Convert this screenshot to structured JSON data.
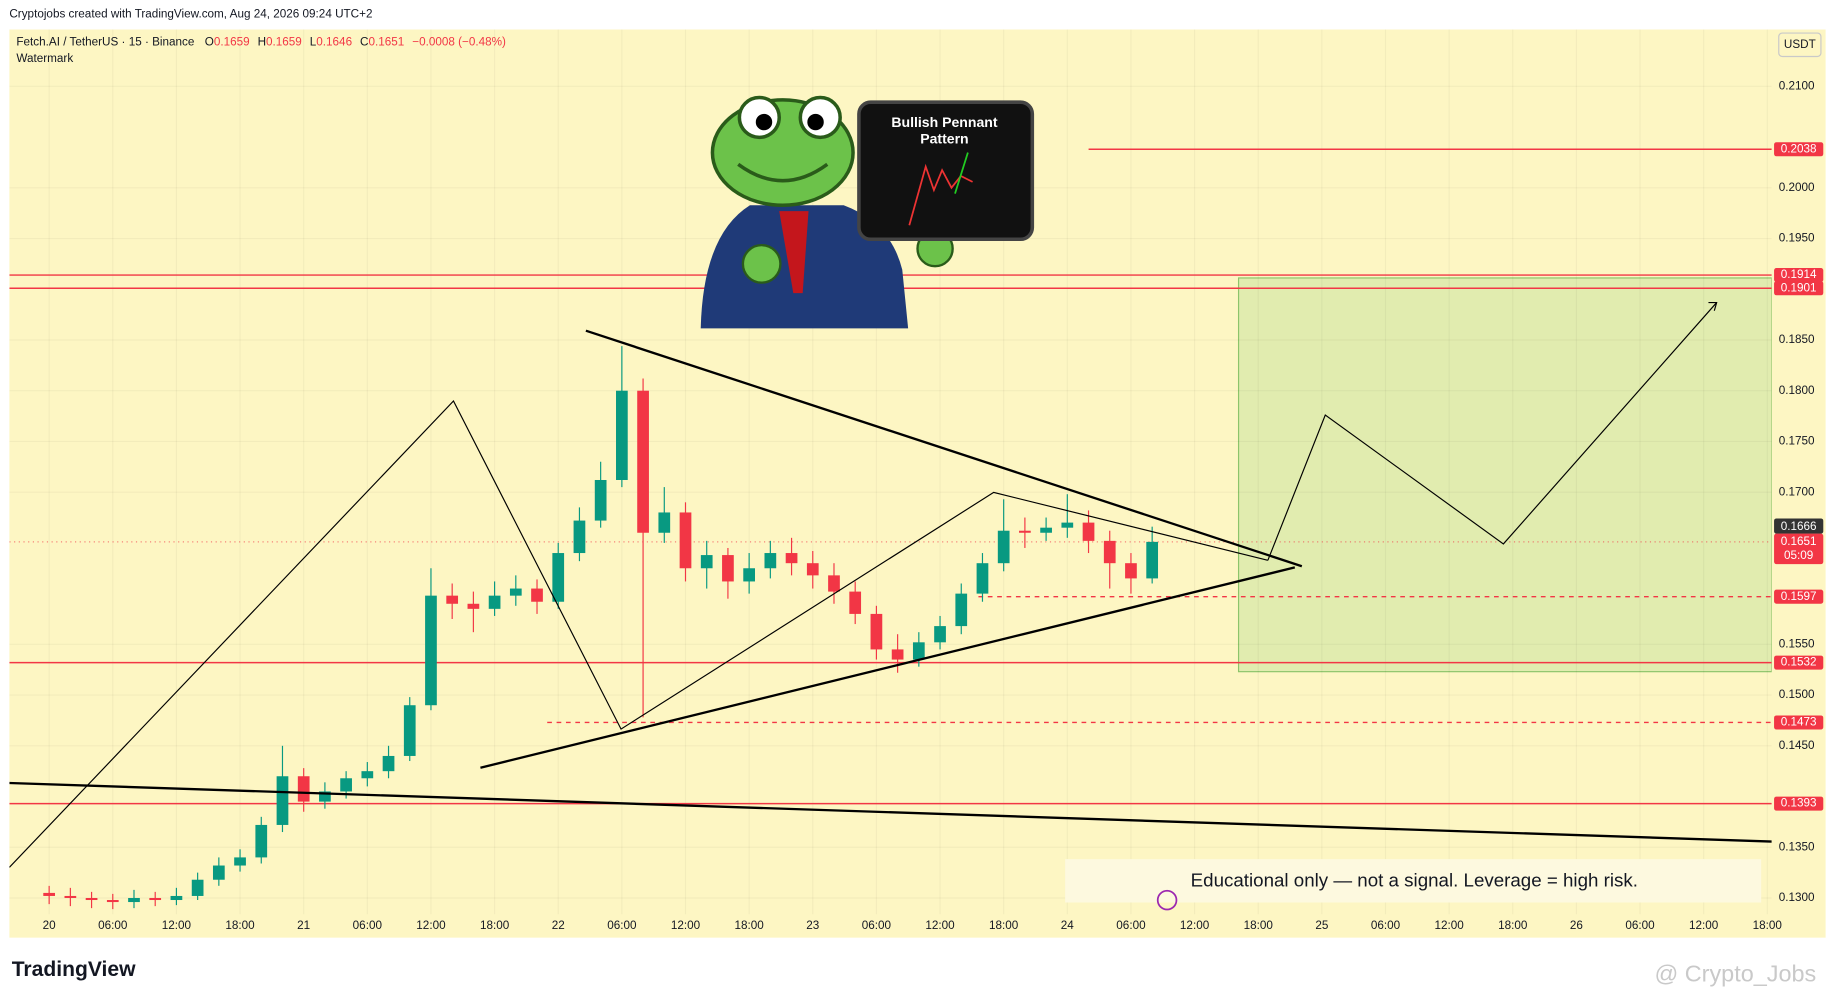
{
  "header": {
    "credit": "Cryptojobs created with TradingView.com, Aug 24, 2026 09:24 UTC+2",
    "symbol": "Fetch.AI / TetherUS · 15 · Binance",
    "open_label": "O",
    "open": "0.1659",
    "high_label": "H",
    "high": "0.1659",
    "low_label": "L",
    "low": "0.1646",
    "close_label": "C",
    "close": "0.1651",
    "change": "−0.0008 (−0.48%)",
    "watermark": "Watermark",
    "currency": "USDT"
  },
  "board": {
    "title": "Bullish Pennant",
    "subtitle": "Pattern"
  },
  "disclaimer": "Educational only — not a signal. Leverage  = high risk.",
  "footer": {
    "logo": "TradingView",
    "handle": "@ Crypto_Jobs"
  },
  "chart_data": {
    "type": "candlestick",
    "up_color": "#089981",
    "down_color": "#f23645",
    "x": [
      "20 00:00",
      "20 02:00",
      "20 04:00",
      "20 06:00",
      "20 08:00",
      "20 10:00",
      "20 12:00",
      "20 14:00",
      "20 16:00",
      "20 18:00",
      "20 20:00",
      "20 22:00",
      "21 00:00",
      "21 02:00",
      "21 04:00",
      "21 06:00",
      "21 08:00",
      "21 10:00",
      "21 12:00",
      "21 14:00",
      "21 16:00",
      "21 18:00",
      "21 20:00",
      "21 22:00",
      "22 00:00",
      "22 02:00",
      "22 04:00",
      "22 06:00",
      "22 08:00",
      "22 10:00",
      "22 12:00",
      "22 14:00",
      "22 16:00",
      "22 18:00",
      "22 20:00",
      "22 22:00",
      "23 00:00",
      "23 02:00",
      "23 04:00",
      "23 06:00",
      "23 08:00",
      "23 10:00",
      "23 12:00",
      "23 14:00",
      "23 16:00",
      "23 18:00",
      "23 20:00",
      "23 22:00",
      "24 00:00",
      "24 02:00",
      "24 04:00",
      "24 06:00",
      "24 08:00"
    ],
    "open": [
      0.1305,
      0.1302,
      0.13,
      0.1298,
      0.1296,
      0.13,
      0.1298,
      0.1302,
      0.1318,
      0.1332,
      0.134,
      0.1372,
      0.142,
      0.1395,
      0.1405,
      0.1418,
      0.1425,
      0.144,
      0.149,
      0.1598,
      0.159,
      0.1585,
      0.1598,
      0.1605,
      0.1592,
      0.164,
      0.1672,
      0.1712,
      0.18,
      0.166,
      0.168,
      0.1625,
      0.1638,
      0.1612,
      0.1625,
      0.164,
      0.163,
      0.1618,
      0.1602,
      0.158,
      0.1545,
      0.1535,
      0.1552,
      0.1568,
      0.16,
      0.163,
      0.1662,
      0.166,
      0.1665,
      0.167,
      0.1652,
      0.163,
      0.1615
    ],
    "high": [
      0.1312,
      0.131,
      0.1306,
      0.1304,
      0.1308,
      0.1306,
      0.131,
      0.1325,
      0.134,
      0.1348,
      0.138,
      0.145,
      0.1428,
      0.1414,
      0.1425,
      0.1434,
      0.145,
      0.1498,
      0.1625,
      0.161,
      0.1602,
      0.1612,
      0.1618,
      0.1614,
      0.165,
      0.1685,
      0.173,
      0.1844,
      0.1812,
      0.1705,
      0.169,
      0.1652,
      0.1645,
      0.164,
      0.1652,
      0.1655,
      0.1642,
      0.163,
      0.1612,
      0.1588,
      0.156,
      0.1562,
      0.1578,
      0.161,
      0.164,
      0.1693,
      0.1675,
      0.1675,
      0.1698,
      0.1682,
      0.1662,
      0.164,
      0.1666
    ],
    "low": [
      0.1294,
      0.1292,
      0.129,
      0.1289,
      0.129,
      0.1292,
      0.1293,
      0.1298,
      0.1312,
      0.1326,
      0.1334,
      0.1365,
      0.1385,
      0.1388,
      0.1398,
      0.141,
      0.1418,
      0.1435,
      0.1485,
      0.1575,
      0.1562,
      0.1578,
      0.1588,
      0.158,
      0.1585,
      0.1632,
      0.1665,
      0.1705,
      0.1478,
      0.165,
      0.1612,
      0.1605,
      0.1595,
      0.16,
      0.1615,
      0.1618,
      0.1605,
      0.159,
      0.157,
      0.1535,
      0.1522,
      0.1528,
      0.1545,
      0.156,
      0.1592,
      0.1622,
      0.1645,
      0.1652,
      0.1655,
      0.164,
      0.1605,
      0.16,
      0.161
    ],
    "close": [
      0.1302,
      0.13,
      0.1298,
      0.1296,
      0.13,
      0.1298,
      0.1302,
      0.1318,
      0.1332,
      0.134,
      0.1372,
      0.142,
      0.1395,
      0.1405,
      0.1418,
      0.1425,
      0.144,
      0.149,
      0.1598,
      0.159,
      0.1585,
      0.1598,
      0.1605,
      0.1592,
      0.164,
      0.1672,
      0.1712,
      0.18,
      0.166,
      0.168,
      0.1625,
      0.1638,
      0.1612,
      0.1625,
      0.164,
      0.163,
      0.1618,
      0.1602,
      0.158,
      0.1545,
      0.1535,
      0.1552,
      0.1568,
      0.16,
      0.163,
      0.1662,
      0.166,
      0.1665,
      0.167,
      0.1652,
      0.163,
      0.1615,
      0.1651
    ],
    "xlim": [
      "19 20:15",
      "26 18:25"
    ],
    "xticks": [
      {
        "value": "20 00:00",
        "label": "20"
      },
      {
        "value": "20 06:00",
        "label": "06:00"
      },
      {
        "value": "20 12:00",
        "label": "12:00"
      },
      {
        "value": "20 18:00",
        "label": "18:00"
      },
      {
        "value": "21 00:00",
        "label": "21"
      },
      {
        "value": "21 06:00",
        "label": "06:00"
      },
      {
        "value": "21 12:00",
        "label": "12:00"
      },
      {
        "value": "21 18:00",
        "label": "18:00"
      },
      {
        "value": "22 00:00",
        "label": "22"
      },
      {
        "value": "22 06:00",
        "label": "06:00"
      },
      {
        "value": "22 12:00",
        "label": "12:00"
      },
      {
        "value": "22 18:00",
        "label": "18:00"
      },
      {
        "value": "23 00:00",
        "label": "23"
      },
      {
        "value": "23 06:00",
        "label": "06:00"
      },
      {
        "value": "23 12:00",
        "label": "12:00"
      },
      {
        "value": "23 18:00",
        "label": "18:00"
      },
      {
        "value": "24 00:00",
        "label": "24"
      },
      {
        "value": "24 06:00",
        "label": "06:00"
      },
      {
        "value": "24 12:00",
        "label": "12:00"
      },
      {
        "value": "24 18:00",
        "label": "18:00"
      },
      {
        "value": "25 00:00",
        "label": "25"
      },
      {
        "value": "25 06:00",
        "label": "06:00"
      },
      {
        "value": "25 12:00",
        "label": "12:00"
      },
      {
        "value": "25 18:00",
        "label": "18:00"
      },
      {
        "value": "26 00:00",
        "label": "26"
      },
      {
        "value": "26 06:00",
        "label": "06:00"
      },
      {
        "value": "26 12:00",
        "label": "12:00"
      },
      {
        "value": "26 18:00",
        "label": "18:00"
      }
    ],
    "ylim": [
      0.1284,
      0.2156
    ],
    "yticks": [
      {
        "value": 0.13,
        "label": "0.1300"
      },
      {
        "value": 0.135,
        "label": "0.1350"
      },
      {
        "value": 0.145,
        "label": "0.1450"
      },
      {
        "value": 0.15,
        "label": "0.1500"
      },
      {
        "value": 0.155,
        "label": "0.1550"
      },
      {
        "value": 0.17,
        "label": "0.1700"
      },
      {
        "value": 0.175,
        "label": "0.1750"
      },
      {
        "value": 0.18,
        "label": "0.1800"
      },
      {
        "value": 0.185,
        "label": "0.1850"
      },
      {
        "value": 0.195,
        "label": "0.1950"
      },
      {
        "value": 0.2,
        "label": "0.2000"
      },
      {
        "value": 0.21,
        "label": "0.2100"
      }
    ],
    "levels": [
      {
        "value": 0.2038,
        "style": "solid"
      },
      {
        "value": 0.1914,
        "style": "solid"
      },
      {
        "value": 0.1901,
        "style": "solid"
      },
      {
        "value": 0.1597,
        "style": "dashed"
      },
      {
        "value": 0.1532,
        "style": "solid"
      },
      {
        "value": 0.1473,
        "style": "dashed"
      },
      {
        "value": 0.1393,
        "style": "solid"
      }
    ],
    "last_high": 0.1666,
    "last_price": 0.1651,
    "countdown": "05:09",
    "level_color": "#f23645"
  }
}
